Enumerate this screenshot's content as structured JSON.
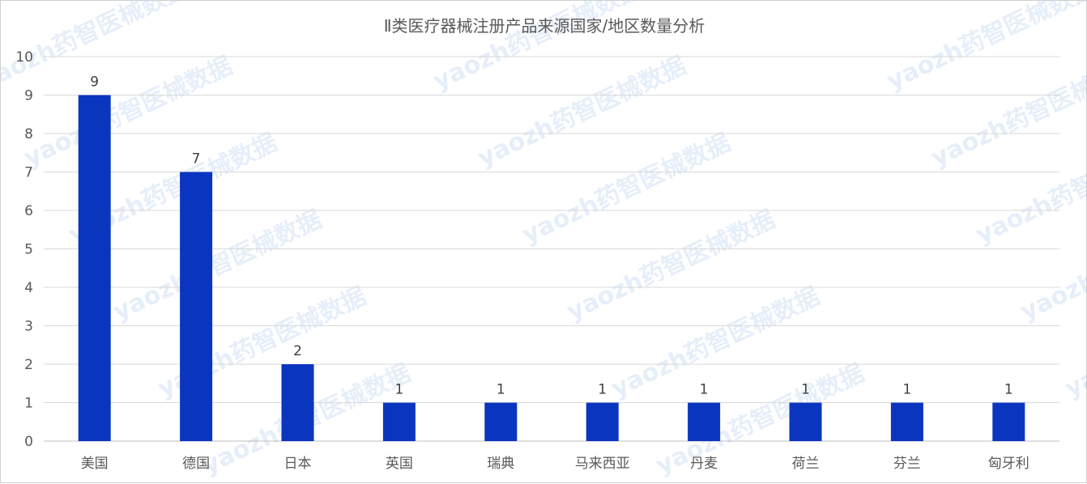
{
  "chart_data": {
    "type": "bar",
    "title": "Ⅱ类医疗器械注册产品来源国家/地区数量分析",
    "categories": [
      "美国",
      "德国",
      "日本",
      "英国",
      "瑞典",
      "马来西亚",
      "丹麦",
      "荷兰",
      "芬兰",
      "匈牙利"
    ],
    "values": [
      9,
      7,
      2,
      1,
      1,
      1,
      1,
      1,
      1,
      1
    ],
    "ylim": [
      0,
      10
    ],
    "yticks": [
      0,
      1,
      2,
      3,
      4,
      5,
      6,
      7,
      8,
      9,
      10
    ],
    "grid": true,
    "data_labels": true,
    "bar_color": "#0a36bf",
    "xlabel": "",
    "ylabel": ""
  },
  "watermark": "yaozh药智医械数据"
}
